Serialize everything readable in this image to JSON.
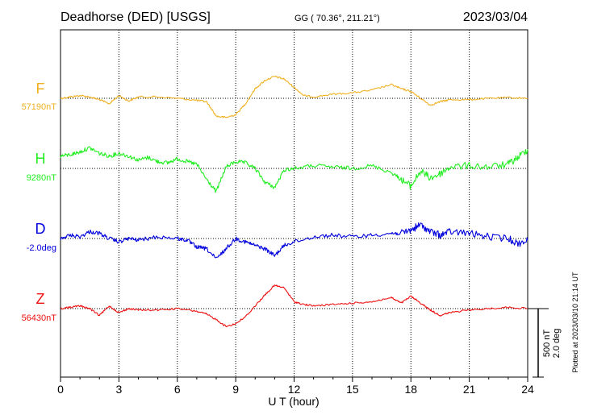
{
  "header": {
    "station": "Deadhorse (DED)  [USGS]",
    "coords": "GG ( 70.36°, 211.21°)",
    "date": "2023/03/04"
  },
  "side_note": "Plotted at 2023/03/10 21:14 UT",
  "scale_bar": {
    "nt_label": "500 nT",
    "deg_label": "2.0 deg"
  },
  "chart_data": {
    "type": "line",
    "xlabel": "U T (hour)",
    "xlim": [
      0,
      24
    ],
    "x_ticks": [
      0,
      3,
      6,
      9,
      12,
      15,
      18,
      21,
      24
    ],
    "grid": true,
    "series": [
      {
        "name": "F",
        "baseline_label": "57190nT",
        "color": "#f0b020",
        "baseline": 57190,
        "unit": "nT",
        "points": [
          [
            0,
            57190
          ],
          [
            0.5,
            57200
          ],
          [
            1,
            57210
          ],
          [
            1.5,
            57200
          ],
          [
            2,
            57180
          ],
          [
            2.5,
            57150
          ],
          [
            3,
            57210
          ],
          [
            3.5,
            57170
          ],
          [
            4,
            57200
          ],
          [
            5,
            57200
          ],
          [
            6,
            57190
          ],
          [
            7,
            57175
          ],
          [
            7.5,
            57165
          ],
          [
            8,
            57060
          ],
          [
            8.5,
            57050
          ],
          [
            9,
            57070
          ],
          [
            9.5,
            57150
          ],
          [
            10,
            57260
          ],
          [
            10.5,
            57320
          ],
          [
            11,
            57350
          ],
          [
            11.5,
            57330
          ],
          [
            12,
            57270
          ],
          [
            12.5,
            57210
          ],
          [
            13,
            57200
          ],
          [
            14,
            57220
          ],
          [
            15,
            57230
          ],
          [
            16,
            57250
          ],
          [
            17,
            57290
          ],
          [
            17.5,
            57260
          ],
          [
            18,
            57240
          ],
          [
            18.5,
            57190
          ],
          [
            19,
            57140
          ],
          [
            19.5,
            57165
          ],
          [
            20,
            57180
          ],
          [
            21,
            57180
          ],
          [
            22,
            57190
          ],
          [
            23,
            57195
          ],
          [
            24,
            57190
          ]
        ]
      },
      {
        "name": "H",
        "baseline_label": "9280nT",
        "color": "#22ee22",
        "baseline": 9280,
        "unit": "nT",
        "points": [
          [
            0,
            9370
          ],
          [
            0.5,
            9380
          ],
          [
            1,
            9400
          ],
          [
            1.5,
            9430
          ],
          [
            2,
            9390
          ],
          [
            2.5,
            9370
          ],
          [
            3,
            9390
          ],
          [
            3.5,
            9370
          ],
          [
            4,
            9340
          ],
          [
            4.5,
            9360
          ],
          [
            5,
            9330
          ],
          [
            5.5,
            9320
          ],
          [
            6,
            9350
          ],
          [
            6.5,
            9330
          ],
          [
            7,
            9310
          ],
          [
            7.5,
            9200
          ],
          [
            8,
            9110
          ],
          [
            8.5,
            9290
          ],
          [
            9,
            9330
          ],
          [
            9.5,
            9320
          ],
          [
            10,
            9280
          ],
          [
            10.5,
            9180
          ],
          [
            11,
            9140
          ],
          [
            11.5,
            9270
          ],
          [
            12,
            9280
          ],
          [
            13,
            9300
          ],
          [
            14,
            9290
          ],
          [
            15,
            9280
          ],
          [
            16,
            9300
          ],
          [
            17,
            9250
          ],
          [
            17.5,
            9200
          ],
          [
            18,
            9150
          ],
          [
            18.5,
            9260
          ],
          [
            19,
            9210
          ],
          [
            19.5,
            9240
          ],
          [
            20,
            9290
          ],
          [
            21,
            9300
          ],
          [
            22,
            9290
          ],
          [
            23,
            9310
          ],
          [
            23.5,
            9360
          ],
          [
            24,
            9420
          ]
        ]
      },
      {
        "name": "D",
        "baseline_label": "-2.0deg",
        "color": "#0000dd",
        "baseline": -2.0,
        "unit": "deg",
        "points": [
          [
            0,
            -2.0
          ],
          [
            0.5,
            -1.9
          ],
          [
            1,
            -1.95
          ],
          [
            1.5,
            -1.8
          ],
          [
            2,
            -1.85
          ],
          [
            2.5,
            -2.0
          ],
          [
            3,
            -2.1
          ],
          [
            3.5,
            -2.0
          ],
          [
            4,
            -2.05
          ],
          [
            5,
            -1.95
          ],
          [
            6,
            -2.0
          ],
          [
            6.5,
            -2.05
          ],
          [
            7,
            -2.25
          ],
          [
            7.5,
            -2.3
          ],
          [
            8,
            -2.6
          ],
          [
            8.5,
            -2.3
          ],
          [
            9,
            -2.0
          ],
          [
            9.5,
            -2.1
          ],
          [
            10,
            -2.2
          ],
          [
            10.5,
            -2.3
          ],
          [
            11,
            -2.5
          ],
          [
            11.5,
            -2.2
          ],
          [
            12,
            -2.1
          ],
          [
            13,
            -1.95
          ],
          [
            14,
            -1.9
          ],
          [
            15,
            -1.95
          ],
          [
            16,
            -1.9
          ],
          [
            17,
            -1.85
          ],
          [
            17.5,
            -1.85
          ],
          [
            18,
            -1.75
          ],
          [
            18.5,
            -1.6
          ],
          [
            19,
            -1.8
          ],
          [
            19.5,
            -1.9
          ],
          [
            20,
            -1.8
          ],
          [
            21,
            -1.85
          ],
          [
            22,
            -1.95
          ],
          [
            23,
            -2.0
          ],
          [
            23.5,
            -2.15
          ],
          [
            24,
            -2.05
          ]
        ]
      },
      {
        "name": "Z",
        "baseline_label": "56430nT",
        "color": "#ee1111",
        "baseline": 56430,
        "unit": "nT",
        "points": [
          [
            0,
            56430
          ],
          [
            0.5,
            56440
          ],
          [
            1,
            56450
          ],
          [
            1.5,
            56430
          ],
          [
            2,
            56380
          ],
          [
            2.5,
            56450
          ],
          [
            3,
            56400
          ],
          [
            3.5,
            56430
          ],
          [
            4,
            56420
          ],
          [
            5,
            56420
          ],
          [
            6,
            56430
          ],
          [
            7,
            56410
          ],
          [
            7.5,
            56390
          ],
          [
            8,
            56350
          ],
          [
            8.5,
            56300
          ],
          [
            9,
            56320
          ],
          [
            9.5,
            56370
          ],
          [
            10,
            56450
          ],
          [
            10.5,
            56530
          ],
          [
            11,
            56600
          ],
          [
            11.5,
            56580
          ],
          [
            12,
            56480
          ],
          [
            12.5,
            56460
          ],
          [
            13,
            56450
          ],
          [
            14,
            56460
          ],
          [
            15,
            56470
          ],
          [
            16,
            56480
          ],
          [
            17,
            56510
          ],
          [
            17.5,
            56470
          ],
          [
            18,
            56520
          ],
          [
            18.5,
            56470
          ],
          [
            19,
            56420
          ],
          [
            19.5,
            56380
          ],
          [
            20,
            56400
          ],
          [
            21,
            56420
          ],
          [
            22,
            56430
          ],
          [
            23,
            56440
          ],
          [
            24,
            56430
          ]
        ]
      }
    ]
  }
}
